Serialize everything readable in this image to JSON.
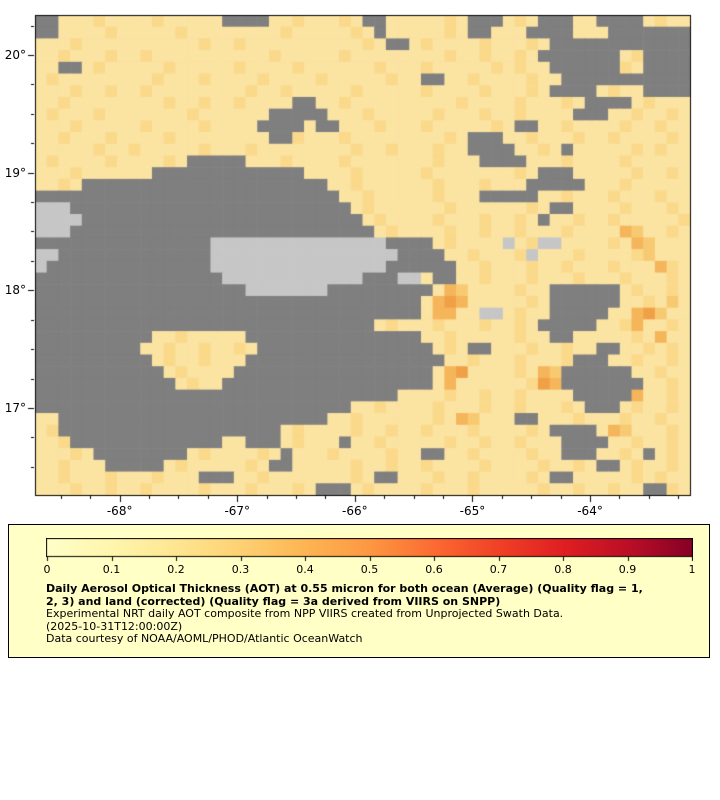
{
  "map": {
    "grid": {
      "palette": {
        "1": "#FDF2C0",
        "2": "#FBE3A2",
        "3": "#FAD98B",
        "4": "#F7CA72",
        "5": "#F5B55A",
        "6": "#F0A148",
        "7": "#E98A3C",
        "g": "#7F7F7F",
        "L": "#C6C6C6"
      },
      "legend_for_palette": {
        "1": "AOT ~0.05",
        "2": "AOT ~0.1",
        "3": "AOT ~0.15",
        "4": "AOT ~0.2",
        "5": "AOT ~0.3",
        "6": "AOT ~0.35",
        "7": "AOT ~0.45",
        "g": "no data",
        "L": "land"
      },
      "cells": [
        [
          "gg222322",
          "22322222",
          "gggg2232",
          "2232gg22",
          "22232ggg",
          "232ggg22",
          "gggg2322"
        ],
        [
          "gg222232",
          "22223222",
          "22222322",
          "22232g22",
          "22232gg2",
          "22gggg22",
          "2ggggggg"
        ],
        [
          "22232222",
          "22222232",
          "23222222",
          "222232gg",
          "23222232",
          "2232gggg",
          "gggggggg"
        ],
        [
          "22322232",
          "23222222",
          "22223222",
          "22322222",
          "22232232",
          "232ggggg",
          "gg23gggg"
        ],
        [
          "22gg2322",
          "22232222",
          "23222232",
          "22222322",
          "23222223",
          "2322gggg",
          "gg32gggg"
        ],
        [
          "23222222",
          "22322232",
          "22232222",
          "32222232",
          "2gg22322",
          "22322ggg",
          "gggggggg"
        ],
        [
          "22232232",
          "23222222",
          "22322322",
          "22232222",
          "23222232",
          "2232gggg",
          "2322gggg"
        ],
        [
          "22322222",
          "22232232",
          "232222gg",
          "22322222",
          "22223222",
          "2322232g",
          "ggg23222"
        ],
        [
          "23222322",
          "22222322",
          "2222gggg",
          "g2223222",
          "22322232",
          "232222gg",
          "g2232232"
        ],
        [
          "22232222",
          "23222232",
          "222gggg2",
          "gg222322",
          "23222223",
          "2gg22322",
          "22322322"
        ],
        [
          "22322232",
          "22232222",
          "2222gg32",
          "22322222",
          "22232ggg",
          "22322232",
          "23222232"
        ],
        [
          "22222322",
          "32222232",
          "22322222",
          "22232232",
          "22322ggg",
          "g2232g22",
          "22232322"
        ],
        [
          "23222232",
          "22232ggg",
          "gg222322",
          "22322222",
          "223222gg",
          "gg222322",
          "22322222"
        ],
        [
          "22232222",
          "22gggggg",
          "ggggggg2",
          "22232222",
          "23222222",
          "232ggg22",
          "22232232"
        ],
        [
          "2232gggg",
          "gggggggg",
          "gggggggg",
          "g2232222",
          "22322232",
          "22ggggg2",
          "22322222"
        ],
        [
          "gggggggg",
          "gggggggg",
          "gggggggg",
          "gg223222",
          "223222gg",
          "ggg22322",
          "23222322"
        ],
        [
          "LLLggggg",
          "gggggggg",
          "gggggggg",
          "ggg23222",
          "22232222",
          "2232gg22",
          "22322232"
        ],
        [
          "LLLLgggg",
          "gggggggg",
          "gggggggg",
          "gggg2322",
          "22322232",
          "232g2232",
          "23222223"
        ],
        [
          "LLLggggg",
          "gggggggg",
          "gggggggg",
          "ggggg232",
          "22232232",
          "23222322",
          "22542232"
        ],
        [
          "gggggggg",
          "gggggggL",
          "LLLLLLLL",
          "LLLLLLgg",
          "gg232222",
          "L23LL222",
          "23254222"
        ],
        [
          "LLgggggg",
          "gggggggL",
          "LLLLLLLL",
          "LLLLLLLg",
          "ggg22322",
          "23L22232",
          "22234222"
        ],
        [
          "Lggggggg",
          "gggggggL",
          "LLLLLLLL",
          "LLLLLLgg",
          "gggg2232",
          "22322322",
          "23222532"
        ],
        [
          "gggggggg",
          "gggggggg",
          "LLLLLLLL",
          "LLLLgggL",
          "L2gg2232",
          "22322232",
          "22322232"
        ],
        [
          "gggggggg",
          "gggggggg",
          "ggLLLLLL",
          "Lggggggg",
          "gg254222",
          "2322gggg",
          "gg232232"
        ],
        [
          "gggggggg",
          "gggggggg",
          "gggggggg",
          "gggggggg",
          "g2565222",
          "2232gggg",
          "gg223242"
        ],
        [
          "gggggggg",
          "gggggggg",
          "gggggggg",
          "gggggggg",
          "g25522LL",
          "2322gggg",
          "g2256422"
        ],
        [
          "gggggggg",
          "gggggggg",
          "gggggggg",
          "ggggg232",
          "22322232",
          "232ggggg",
          "22352232"
        ],
        [
          "gggggggg",
          "gg223222",
          "22gggggg",
          "gggggggg",
          "g2232222",
          "2322gg22",
          "22232522"
        ],
        [
          "gggggggg",
          "g2232232",
          "232ggggg",
          "gggggggg",
          "gg232gg2",
          "22322322",
          "gg223232"
        ],
        [
          "gggggggg",
          "gg232232",
          "22gggggg",
          "gggggggg",
          "ggg22322",
          "232223gg",
          "g2232232"
        ],
        [
          "gggggggg",
          "ggg23222",
          "2ggggggg",
          "gggggggg",
          "gg256222",
          "23254ggg",
          "ggg22322"
        ],
        [
          "gggggggg",
          "gggg2322",
          "gggggggg",
          "gggggggg",
          "gg252222",
          "22365ggg",
          "gggg2232"
        ],
        [
          "gggggggg",
          "gggggggg",
          "gggggggg",
          "ggggggg2",
          "22232232",
          "232222gg",
          "ggg52232"
        ],
        [
          "gggggggg",
          "gggggggg",
          "gggggggg",
          "ggg22322",
          "22322232",
          "2322232g",
          "gg232232"
        ],
        [
          "22gggggg",
          "gggggggg",
          "gggggggg",
          "g2232222",
          "22325422",
          "2gg22232",
          "22322322"
        ],
        [
          "23gggggg",
          "gggggggg",
          "ggggg232",
          "22232232",
          "23222322",
          "2232gggg",
          "25422232"
        ],
        [
          "223ggggg",
          "gggggggg",
          "22ggg232",
          "22g22322",
          "22232232",
          "23222ggg",
          "g2232232"
        ],
        [
          "22232ggg",
          "ggggg232",
          "22232g22",
          "23222232",
          "2gg22322",
          "22322ggg",
          "2232g232"
        ],
        [
          "223222gg",
          "ggg23222",
          "2232gg22",
          "22232232",
          "23222232",
          "22232232",
          "gg232232"
        ],
        [
          "22322232",
          "223222gg",
          "g2232222",
          "22232gg2",
          "22322322",
          "2232gg22",
          "22232322"
        ],
        [
          "22232232",
          "23222232",
          "22322232",
          "ggg23222",
          "23222322",
          "22232232",
          "2322gg32"
        ]
      ]
    },
    "x_axis": {
      "min": -68.72,
      "max": -63.15,
      "minor_step": 0.25,
      "ticks": [
        {
          "label": "-68°",
          "value": -68
        },
        {
          "label": "-67°",
          "value": -67
        },
        {
          "label": "-66°",
          "value": -66
        },
        {
          "label": "-65°",
          "value": -65
        },
        {
          "label": "-64°",
          "value": -64
        }
      ]
    },
    "y_axis": {
      "min": 16.26,
      "max": 20.34,
      "minor_step": 0.25,
      "ticks": [
        {
          "label": "20°",
          "value": 20
        },
        {
          "label": "19°",
          "value": 19
        },
        {
          "label": "18°",
          "value": 18
        },
        {
          "label": "17°",
          "value": 17
        }
      ]
    }
  },
  "legend": {
    "background": "#FFFFC6",
    "colorbar": {
      "min": 0,
      "max": 1,
      "stops": [
        "#FFFFC8",
        "#FFF6AD",
        "#FEE691",
        "#FED173",
        "#FDB553",
        "#FD9842",
        "#FC6B32",
        "#F04126",
        "#E01F22",
        "#BC0F26",
        "#870026"
      ],
      "tick_labels": [
        "0",
        "0.1",
        "0.2",
        "0.3",
        "0.4",
        "0.5",
        "0.6",
        "0.7",
        "0.8",
        "0.9",
        "1"
      ]
    },
    "title_bold_line1": "Daily Aerosol Optical Thickness (AOT) at 0.55 micron for both ocean (Average) (Quality flag = 1,",
    "title_bold_line2": "2, 3) and land (corrected) (Quality flag = 3a derived from VIIRS on SNPP)",
    "subtitle": "Experimental NRT daily AOT composite from NPP VIIRS created from Unprojected Swath Data.",
    "timestamp": "(2025-10-31T12:00:00Z)",
    "credit": "Data courtesy of NOAA/AOML/PHOD/Atlantic OceanWatch"
  }
}
